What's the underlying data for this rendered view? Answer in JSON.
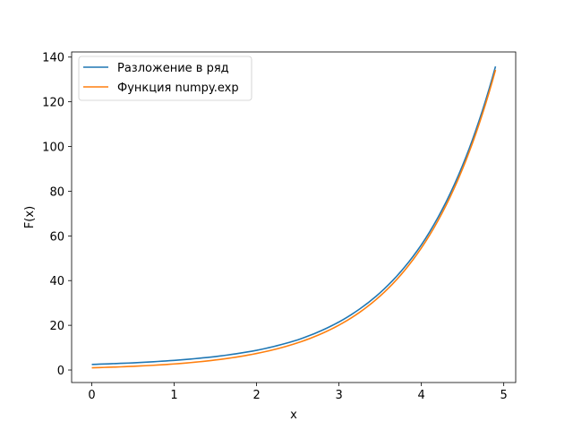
{
  "chart_data": {
    "type": "line",
    "title": "",
    "xlabel": "x",
    "ylabel": "F(x)",
    "xlim": [
      -0.245,
      5.145
    ],
    "ylim": [
      -5.6,
      142.3
    ],
    "xticks": [
      0,
      1,
      2,
      3,
      4,
      5
    ],
    "yticks": [
      0,
      20,
      40,
      60,
      80,
      100,
      120,
      140
    ],
    "grid": false,
    "legend_position": "top-left",
    "series": [
      {
        "name": "Разложение в ряд",
        "color": "#1f77b4",
        "x": [
          0,
          0.5,
          1,
          1.5,
          2,
          2.5,
          3,
          3.5,
          4,
          4.5,
          4.9
        ],
        "y": [
          2.5,
          3.2,
          4.3,
          6.0,
          8.8,
          13.5,
          21.5,
          34.6,
          56.0,
          91.5,
          135.8
        ]
      },
      {
        "name": "Функция numpy.exp",
        "color": "#ff7f0e",
        "x": [
          0,
          0.5,
          1,
          1.5,
          2,
          2.5,
          3,
          3.5,
          4,
          4.5,
          4.9
        ],
        "y": [
          1.0,
          1.65,
          2.72,
          4.48,
          7.39,
          12.18,
          20.09,
          33.12,
          54.6,
          90.02,
          134.29
        ]
      }
    ]
  }
}
